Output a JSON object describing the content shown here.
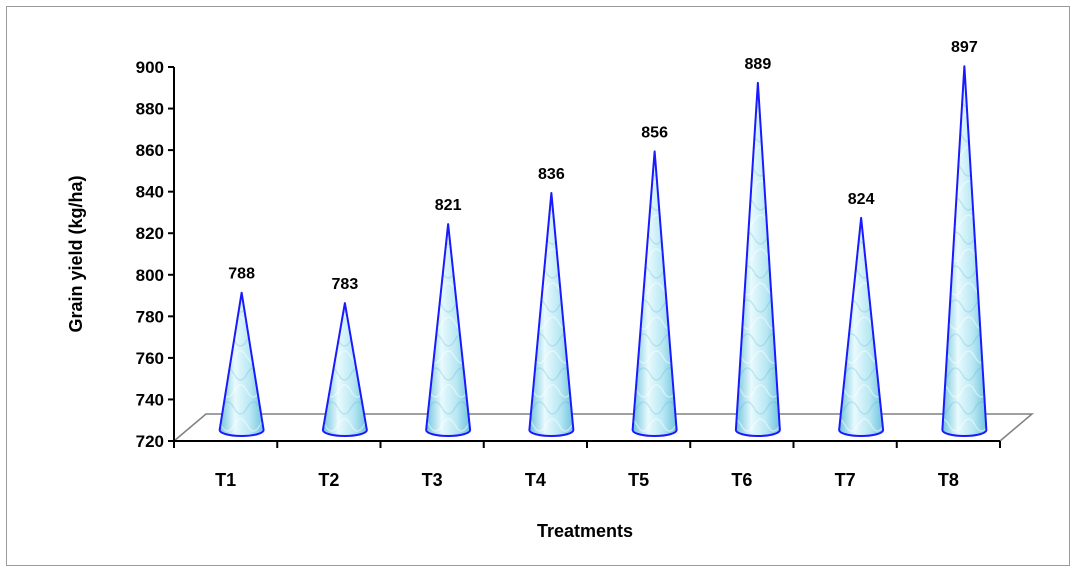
{
  "chart_data": {
    "type": "bar",
    "bar_shape": "cone",
    "categories": [
      "T1",
      "T2",
      "T3",
      "T4",
      "T5",
      "T6",
      "T7",
      "T8"
    ],
    "values": [
      788,
      783,
      821,
      836,
      856,
      889,
      824,
      897
    ],
    "xlabel": "Treatments",
    "ylabel": "Grain yield (kg/ha)",
    "ylim": [
      720,
      900
    ],
    "yticks": [
      720,
      740,
      760,
      780,
      800,
      820,
      840,
      860,
      880,
      900
    ],
    "grid": false,
    "legend": "none",
    "data_labels": true
  },
  "colors": {
    "bar_fill_light": "#e8fafd",
    "bar_fill_mid": "#b7e7f3",
    "bar_fill_dark": "#6fc3dd",
    "bar_outline": "#1a1aff",
    "floor_outline": "#808080",
    "axis": "#000000",
    "frame_border": "#9a9a9a"
  }
}
